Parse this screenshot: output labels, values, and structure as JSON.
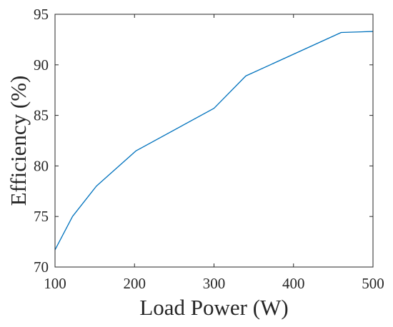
{
  "chart_data": {
    "type": "line",
    "title": "",
    "xlabel": "Load Power (W)",
    "ylabel": "Efficiency (%)",
    "xlim": [
      100,
      500
    ],
    "ylim": [
      70,
      95
    ],
    "xticks": [
      "100",
      "200",
      "300",
      "400",
      "500"
    ],
    "yticks": [
      "70",
      "75",
      "80",
      "85",
      "90",
      "95"
    ],
    "grid": false,
    "line_color": "#0072BD",
    "axis_color": "#262626",
    "series": [
      {
        "x": [
          100,
          122,
          152,
          202,
          300,
          340,
          460,
          500
        ],
        "y": [
          71.7,
          75.0,
          78.0,
          81.5,
          85.7,
          88.9,
          93.2,
          93.3
        ]
      }
    ]
  }
}
